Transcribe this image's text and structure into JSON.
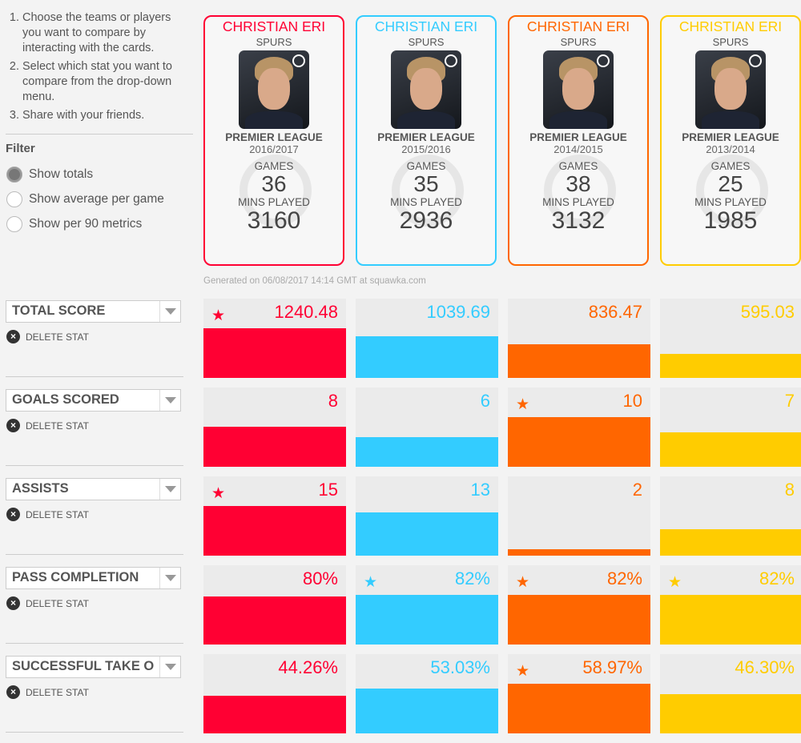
{
  "instructions": [
    "Choose the teams or players you want to compare by interacting with the cards.",
    "Select which stat you want to compare from the drop-down menu.",
    "Share with your friends."
  ],
  "filter": {
    "title": "Filter",
    "options": [
      {
        "label": "Show totals",
        "selected": true
      },
      {
        "label": "Show average per game",
        "selected": false
      },
      {
        "label": "Show per 90 metrics",
        "selected": false
      }
    ]
  },
  "cards": [
    {
      "name": "CHRISTIAN ERI",
      "team": "SPURS",
      "league": "PREMIER LEAGUE",
      "season": "2016/2017",
      "games_label": "GAMES",
      "games": "36",
      "mins_label": "MINS PLAYED",
      "mins": "3160",
      "color": "#ff0033"
    },
    {
      "name": "CHRISTIAN ERI",
      "team": "SPURS",
      "league": "PREMIER LEAGUE",
      "season": "2015/2016",
      "games_label": "GAMES",
      "games": "35",
      "mins_label": "MINS PLAYED",
      "mins": "2936",
      "color": "#33ccff"
    },
    {
      "name": "CHRISTIAN ERI",
      "team": "SPURS",
      "league": "PREMIER LEAGUE",
      "season": "2014/2015",
      "games_label": "GAMES",
      "games": "38",
      "mins_label": "MINS PLAYED",
      "mins": "3132",
      "color": "#ff6600"
    },
    {
      "name": "CHRISTIAN ERI",
      "team": "SPURS",
      "league": "PREMIER LEAGUE",
      "season": "2013/2014",
      "games_label": "GAMES",
      "games": "25",
      "mins_label": "MINS PLAYED",
      "mins": "1985",
      "color": "#ffcc00"
    }
  ],
  "generated": "Generated on 06/08/2017 14:14 GMT at squawka.com",
  "delete_label": "DELETE STAT",
  "stats": [
    {
      "name": "TOTAL SCORE",
      "display": [
        "1240.48",
        "1039.69",
        "836.47",
        "595.03"
      ],
      "values": [
        1240.48,
        1039.69,
        836.47,
        595.03
      ]
    },
    {
      "name": "GOALS SCORED",
      "display": [
        "8",
        "6",
        "10",
        "7"
      ],
      "values": [
        8,
        6,
        10,
        7
      ]
    },
    {
      "name": "ASSISTS",
      "display": [
        "15",
        "13",
        "2",
        "8"
      ],
      "values": [
        15,
        13,
        2,
        8
      ]
    },
    {
      "name": "PASS COMPLETION",
      "display": [
        "80%",
        "82%",
        "82%",
        "82%"
      ],
      "values": [
        80,
        82,
        82,
        82
      ]
    },
    {
      "name": "SUCCESSFUL TAKE O",
      "display": [
        "44.26%",
        "53.03%",
        "58.97%",
        "46.30%"
      ],
      "values": [
        44.26,
        53.03,
        58.97,
        46.3
      ]
    }
  ]
}
